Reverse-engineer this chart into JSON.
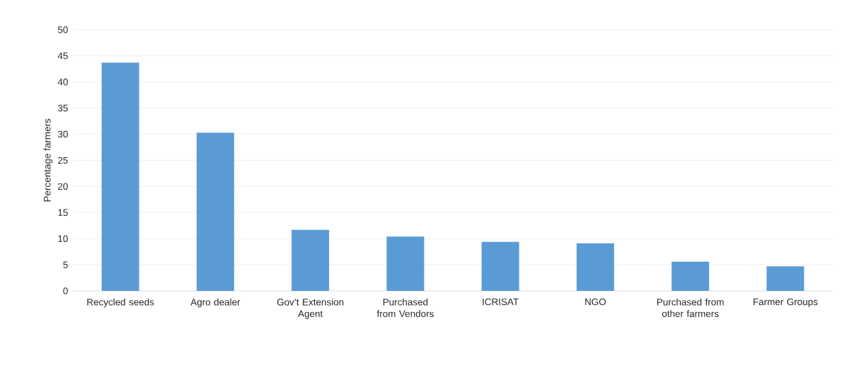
{
  "chart_data": {
    "type": "bar",
    "ylabel": "Percentage farmers",
    "categories": [
      "Recycled seeds",
      "Agro dealer",
      "Gov’t Extension Agent",
      "Purchased from Vendors",
      "ICRISAT",
      "NGO",
      "Purchased from other farmers",
      "Farmer Groups"
    ],
    "values": [
      43.7,
      30.3,
      11.7,
      10.4,
      9.4,
      9.1,
      5.6,
      4.7
    ],
    "color": "#5b9bd5",
    "ylim": [
      0,
      50
    ],
    "yticks": [
      0,
      5,
      10,
      15,
      20,
      25,
      30,
      35,
      40,
      45,
      50
    ],
    "grid": "y"
  }
}
